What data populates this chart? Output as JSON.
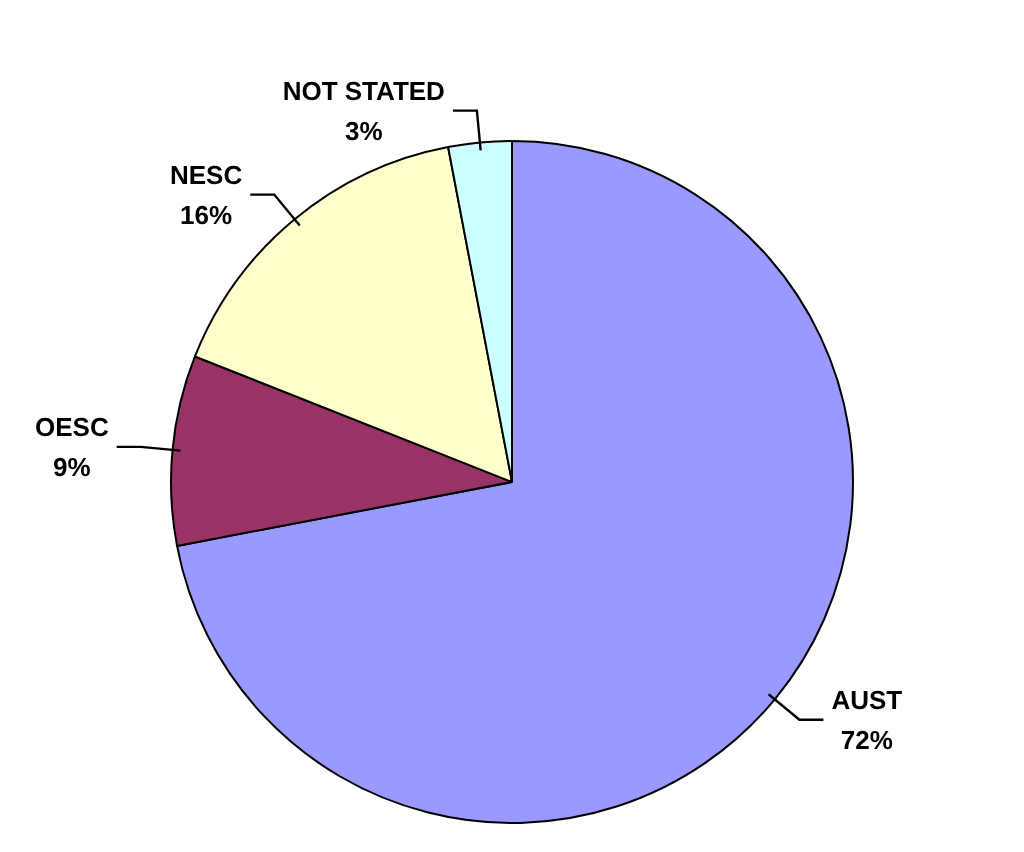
{
  "chart_data": {
    "type": "pie",
    "categories": [
      "AUST",
      "OESC",
      "NESC",
      "NOT STATED"
    ],
    "values": [
      72,
      9,
      16,
      3
    ],
    "value_labels": [
      "72%",
      "9%",
      "16%",
      "3%"
    ],
    "colors": [
      "#9999ff",
      "#993366",
      "#ffffcc",
      "#ccffff"
    ],
    "legend": false
  }
}
